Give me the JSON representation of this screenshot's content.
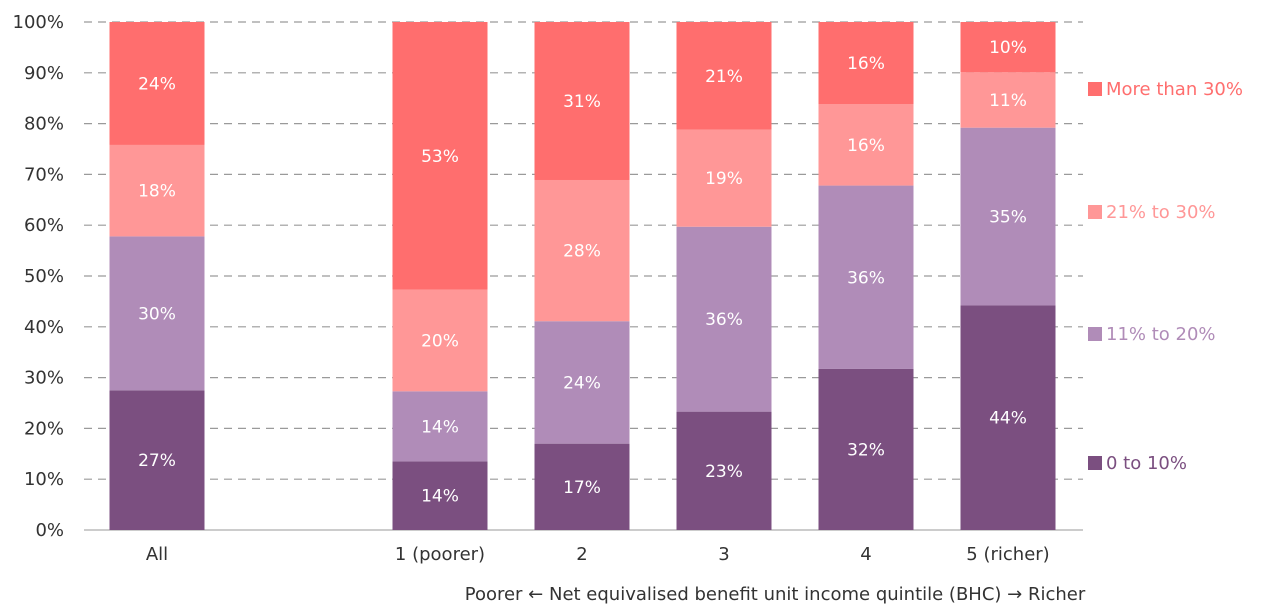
{
  "chart_data": {
    "type": "bar",
    "stacked": true,
    "categories": [
      "All",
      "",
      "1 (poorer)",
      "2",
      "3",
      "4",
      "5 (richer)"
    ],
    "xlabel": "Poorer ← Net equivalised benefit unit income quintile (BHC) → Richer",
    "ylim": [
      0,
      100
    ],
    "yticks": [
      "0%",
      "10%",
      "20%",
      "30%",
      "40%",
      "50%",
      "60%",
      "70%",
      "80%",
      "90%",
      "100%"
    ],
    "grid": true,
    "legend_position": "right",
    "series": [
      {
        "name": "0 to 10%",
        "color": "#7b4f80",
        "values": [
          27.5,
          null,
          13.5,
          17,
          23.3,
          31.7,
          44.2
        ],
        "labels": [
          "27%",
          "",
          "14%",
          "17%",
          "23%",
          "32%",
          "44%"
        ]
      },
      {
        "name": "11% to 20%",
        "color": "#b08cb8",
        "values": [
          30.3,
          null,
          13.8,
          24.1,
          36.4,
          36.1,
          35.0
        ],
        "labels": [
          "30%",
          "",
          "14%",
          "24%",
          "36%",
          "36%",
          "35%"
        ]
      },
      {
        "name": "21% to 30%",
        "color": "#ff9797",
        "values": [
          18.0,
          null,
          20.0,
          27.8,
          19.1,
          16.0,
          10.9
        ],
        "labels": [
          "18%",
          "",
          "20%",
          "28%",
          "19%",
          "16%",
          "11%"
        ]
      },
      {
        "name": "More than 30%",
        "color": "#ff6e6e",
        "values": [
          24.2,
          null,
          52.7,
          31.1,
          21.2,
          16.2,
          9.9
        ],
        "labels": [
          "24%",
          "",
          "53%",
          "31%",
          "21%",
          "16%",
          "10%"
        ]
      }
    ]
  }
}
